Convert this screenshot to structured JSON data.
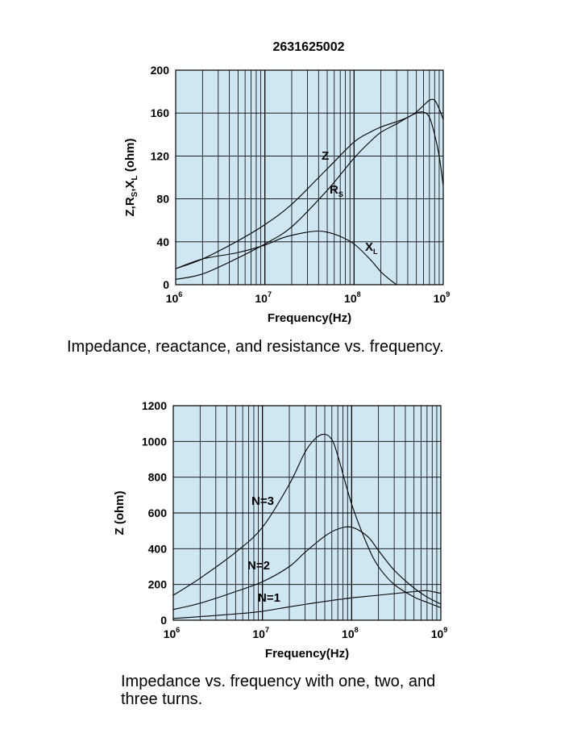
{
  "chart_data": [
    {
      "type": "line",
      "title": "2631625002",
      "xlabel": "Frequency(Hz)",
      "ylabel": "Z,R_S,X_L (ohm)",
      "ylabel_parts": [
        "Z,R",
        "S",
        ",X",
        "L",
        " (ohm)"
      ],
      "xscale": "log",
      "xlim": [
        1000000,
        1000000000
      ],
      "ylim": [
        0,
        200
      ],
      "grid": true,
      "xticks": [
        {
          "base": "10",
          "exp": "6"
        },
        {
          "base": "10",
          "exp": "7"
        },
        {
          "base": "10",
          "exp": "8"
        },
        {
          "base": "10",
          "exp": "9"
        }
      ],
      "yticks": [
        "0",
        "40",
        "80",
        "120",
        "160",
        "200"
      ],
      "caption": "Impedance, reactance, and resistance vs. frequency.",
      "series": [
        {
          "name": "Z",
          "label_main": "Z",
          "label_sub": "",
          "x": [
            1000000,
            2000000,
            5000000,
            10000000,
            20000000,
            50000000,
            100000000,
            150000000,
            200000000,
            300000000,
            400000000,
            500000000,
            600000000,
            700000000,
            800000000,
            900000000,
            1000000000
          ],
          "y": [
            15,
            24,
            41,
            56,
            75,
            108,
            133,
            142,
            147,
            152,
            156,
            161,
            167,
            172,
            172,
            164,
            154
          ]
        },
        {
          "name": "R_S",
          "label_main": "R",
          "label_sub": "S",
          "x": [
            1000000,
            2000000,
            5000000,
            10000000,
            20000000,
            50000000,
            100000000,
            150000000,
            200000000,
            300000000,
            400000000,
            500000000,
            600000000,
            700000000,
            800000000,
            900000000,
            1000000000
          ],
          "y": [
            5,
            10,
            25,
            38,
            54,
            88,
            118,
            133,
            142,
            150,
            156,
            160,
            161,
            156,
            140,
            120,
            92
          ]
        },
        {
          "name": "X_L",
          "label_main": "X",
          "label_sub": "L",
          "x": [
            1000000,
            2000000,
            5000000,
            10000000,
            15000000,
            20000000,
            30000000,
            40000000,
            50000000,
            70000000,
            100000000,
            150000000,
            200000000,
            250000000,
            300000000
          ],
          "y": [
            15,
            24,
            30,
            37,
            43,
            46,
            49,
            50,
            49,
            45,
            38,
            24,
            12,
            5,
            0
          ]
        }
      ]
    },
    {
      "type": "line",
      "title": "",
      "xlabel": "Frequency(Hz)",
      "ylabel": "Z (ohm)",
      "xscale": "log",
      "xlim": [
        1000000,
        1000000000
      ],
      "ylim": [
        0,
        1200
      ],
      "grid": true,
      "xticks": [
        {
          "base": "10",
          "exp": "6"
        },
        {
          "base": "10",
          "exp": "7"
        },
        {
          "base": "10",
          "exp": "8"
        },
        {
          "base": "10",
          "exp": "9"
        }
      ],
      "yticks": [
        "0",
        "200",
        "400",
        "600",
        "800",
        "1000",
        "1200"
      ],
      "caption": "Impedance vs. frequency with one, two, and three  turns.",
      "series": [
        {
          "name": "N=3",
          "x": [
            1000000,
            2000000,
            5000000,
            10000000,
            20000000,
            30000000,
            40000000,
            50000000,
            60000000,
            70000000,
            100000000,
            150000000,
            200000000,
            300000000,
            500000000,
            700000000,
            1000000000
          ],
          "y": [
            140,
            235,
            380,
            520,
            760,
            940,
            1020,
            1040,
            1010,
            920,
            650,
            420,
            300,
            200,
            130,
            100,
            70
          ]
        },
        {
          "name": "N=2",
          "x": [
            1000000,
            2000000,
            5000000,
            10000000,
            20000000,
            30000000,
            50000000,
            70000000,
            100000000,
            150000000,
            200000000,
            300000000,
            500000000,
            700000000,
            1000000000
          ],
          "y": [
            60,
            95,
            160,
            215,
            300,
            380,
            470,
            510,
            520,
            470,
            390,
            280,
            180,
            130,
            90
          ]
        },
        {
          "name": "N=1",
          "x": [
            1000000,
            2000000,
            5000000,
            10000000,
            20000000,
            50000000,
            100000000,
            200000000,
            500000000,
            700000000,
            1000000000
          ],
          "y": [
            10,
            20,
            35,
            50,
            75,
            105,
            125,
            140,
            160,
            165,
            150
          ]
        }
      ]
    }
  ]
}
